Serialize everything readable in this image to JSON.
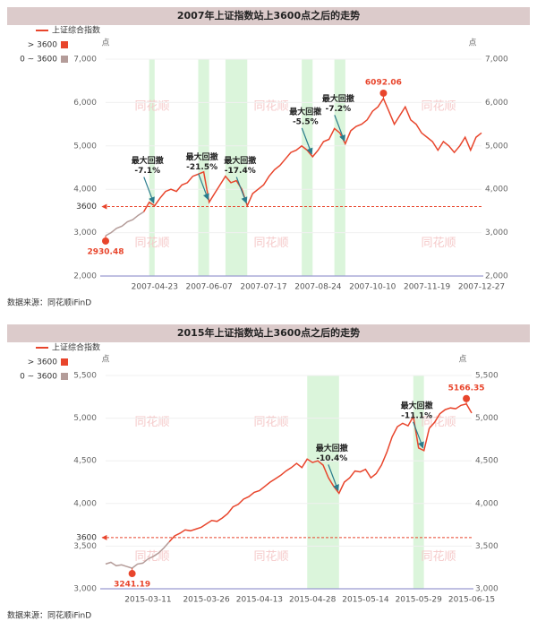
{
  "chart_data": [
    {
      "type": "line",
      "title": "2007年上证指数站上3600点之后的走势",
      "y_unit": "点",
      "source": "数据来源：同花顺iFinD",
      "watermark": "同花顺",
      "categories": [
        null,
        null,
        null,
        null,
        null,
        null,
        null,
        null,
        null,
        "2007-04-23",
        null,
        null,
        null,
        null,
        null,
        null,
        null,
        null,
        null,
        "2007-06-07",
        null,
        null,
        null,
        null,
        null,
        null,
        null,
        null,
        null,
        "2007-07-17",
        null,
        null,
        null,
        null,
        null,
        null,
        null,
        null,
        null,
        "2007-08-24",
        null,
        null,
        null,
        null,
        null,
        null,
        null,
        null,
        null,
        "2007-10-10",
        null,
        null,
        null,
        null,
        null,
        null,
        null,
        null,
        null,
        "2007-11-19",
        null,
        null,
        null,
        null,
        null,
        null,
        null,
        null,
        null,
        "2007-12-27"
      ],
      "series": [
        {
          "name": "上证综合指数",
          "color": "#e8452c",
          "values": [
            2930.48,
            3000,
            3100,
            3150,
            3250,
            3300,
            3400,
            3480,
            3700,
            3620,
            3800,
            3950,
            4000,
            3950,
            4100,
            4150,
            4300,
            4350,
            4400,
            3700,
            3900,
            4100,
            4300,
            4150,
            4200,
            4000,
            3620,
            3900,
            4000,
            4100,
            4300,
            4450,
            4550,
            4700,
            4850,
            4900,
            5000,
            4900,
            4750,
            4900,
            5100,
            5150,
            5400,
            5300,
            5050,
            5350,
            5450,
            5500,
            5600,
            5800,
            5900,
            6092.06,
            5800,
            5500,
            5700,
            5900,
            5600,
            5500,
            5300,
            5200,
            5100,
            4900,
            5100,
            5000,
            4850,
            5000,
            5200,
            4900,
            5200,
            5300
          ]
        }
      ],
      "pieces": [
        {
          "label": "> 3600",
          "color": "#e8452c"
        },
        {
          "label": "0 ~ 3600",
          "color": "#b49c99"
        }
      ],
      "threshold": 3600,
      "ylim": [
        2000,
        7000
      ],
      "yticks": [
        {
          "value": 2000,
          "label": "2,000"
        },
        {
          "value": 3000,
          "label": "3,000"
        },
        {
          "value": 4000,
          "label": "4,000"
        },
        {
          "value": 5000,
          "label": "5,000"
        },
        {
          "value": 6000,
          "label": "6,000"
        },
        {
          "value": 7000,
          "label": "7,000"
        }
      ],
      "shaded": [
        [
          8,
          9
        ],
        [
          17,
          19
        ],
        [
          22,
          26
        ],
        [
          36,
          38
        ],
        [
          42,
          44
        ]
      ],
      "shade_color": "#dbf5db",
      "annotations": [
        {
          "text": "最大回撤",
          "value": -7.1,
          "label": "-7.1%",
          "index": 9
        },
        {
          "text": "最大回撤",
          "value": -21.5,
          "label": "-21.5%",
          "index": 19
        },
        {
          "text": "最大回撤",
          "value": -17.4,
          "label": "-17.4%",
          "index": 26
        },
        {
          "text": "最大回撤",
          "value": -5.5,
          "label": "-5.5%",
          "index": 38
        },
        {
          "text": "最大回撤",
          "value": -7.2,
          "label": "-7.2%",
          "index": 44
        }
      ],
      "label_extremes": true
    },
    {
      "type": "line",
      "title": "2015年上证指数站上3600点之后的走势",
      "y_unit": "点",
      "source": "数据来源：同花顺iFinD",
      "watermark": "同花顺",
      "categories": [
        null,
        null,
        null,
        null,
        null,
        null,
        null,
        null,
        "2015-03-11",
        null,
        null,
        null,
        null,
        null,
        null,
        null,
        null,
        null,
        null,
        "2015-03-26",
        null,
        null,
        null,
        null,
        null,
        null,
        null,
        null,
        null,
        "2015-04-13",
        null,
        null,
        null,
        null,
        null,
        null,
        null,
        null,
        null,
        "2015-04-28",
        null,
        null,
        null,
        null,
        null,
        null,
        null,
        null,
        null,
        "2015-05-14",
        null,
        null,
        null,
        null,
        null,
        null,
        null,
        null,
        null,
        "2015-05-29",
        null,
        null,
        null,
        null,
        null,
        null,
        null,
        null,
        null,
        "2015-06-15"
      ],
      "series": [
        {
          "name": "上证综合指数",
          "color": "#e8452c",
          "values": [
            3290,
            3310,
            3270,
            3280,
            3260,
            3241.19,
            3290,
            3300,
            3350,
            3380,
            3420,
            3480,
            3550,
            3620,
            3650,
            3690,
            3680,
            3700,
            3720,
            3760,
            3800,
            3790,
            3830,
            3880,
            3960,
            3990,
            4050,
            4080,
            4130,
            4150,
            4200,
            4250,
            4290,
            4330,
            4380,
            4420,
            4470,
            4420,
            4520,
            4480,
            4500,
            4450,
            4300,
            4200,
            4120,
            4250,
            4300,
            4380,
            4370,
            4400,
            4300,
            4350,
            4450,
            4600,
            4780,
            4900,
            4940,
            4910,
            5020,
            4650,
            4620,
            4880,
            4950,
            5050,
            5100,
            5120,
            5110,
            5150,
            5166.35,
            5060
          ]
        }
      ],
      "pieces": [
        {
          "label": "> 3600",
          "color": "#e8452c"
        },
        {
          "label": "0 ~ 3600",
          "color": "#b49c99"
        }
      ],
      "threshold": 3600,
      "ylim": [
        3000,
        5500
      ],
      "yticks": [
        {
          "value": 3000,
          "label": "3,000"
        },
        {
          "value": 3500,
          "label": "3,500"
        },
        {
          "value": 4000,
          "label": "4,000"
        },
        {
          "value": 4500,
          "label": "4,500"
        },
        {
          "value": 5000,
          "label": "5,000"
        },
        {
          "value": 5500,
          "label": "5,500"
        }
      ],
      "shaded": [
        [
          38,
          44
        ],
        [
          58,
          60
        ]
      ],
      "shade_color": "#dbf5db",
      "annotations": [
        {
          "text": "最大回撤",
          "value": -10.4,
          "label": "-10.4%",
          "index": 44
        },
        {
          "text": "最大回撤",
          "value": -11.1,
          "label": "-11.1%",
          "index": 60
        }
      ],
      "label_extremes": true
    }
  ]
}
